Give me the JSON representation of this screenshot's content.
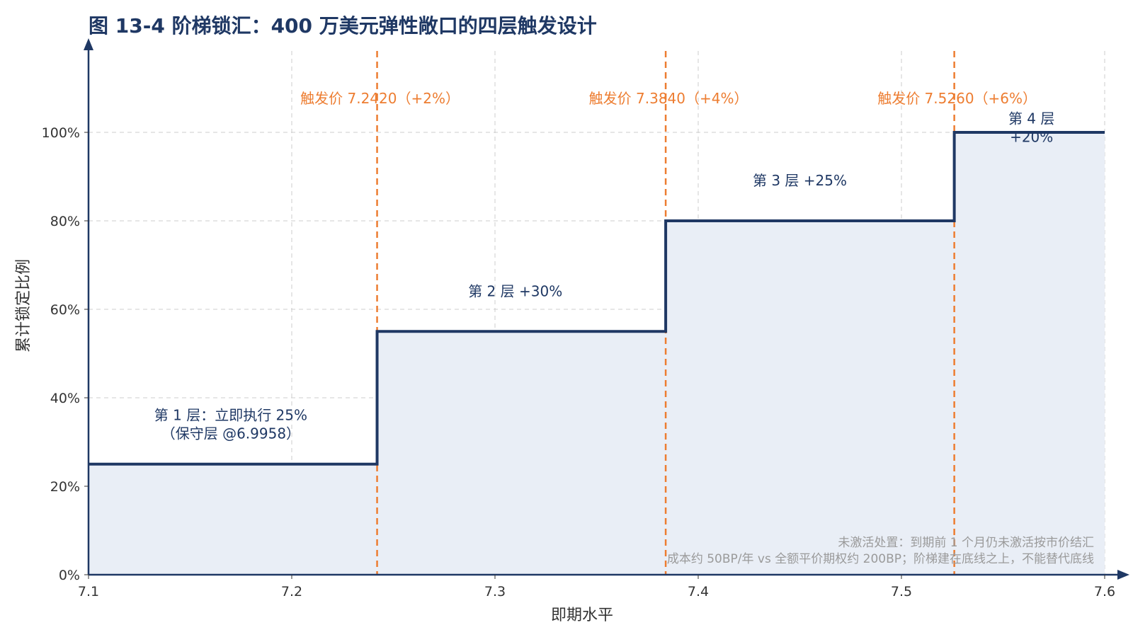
{
  "chart_data": {
    "type": "line",
    "title": "图 13-4 阶梯锁汇：400 万美元弹性敞口的四层触发设计",
    "xlabel": "即期水平",
    "ylabel": "累计锁定比例",
    "xlim": [
      7.1,
      7.6
    ],
    "ylim": [
      0,
      1.15
    ],
    "x_ticks": [
      7.1,
      7.2,
      7.3,
      7.4,
      7.5,
      7.6
    ],
    "x_tick_labels": [
      "7.1",
      "7.2",
      "7.3",
      "7.4",
      "7.5",
      "7.6"
    ],
    "y_ticks": [
      0,
      0.2,
      0.4,
      0.6,
      0.8,
      1.0
    ],
    "y_tick_labels": [
      "0%",
      "20%",
      "40%",
      "60%",
      "80%",
      "100%"
    ],
    "grid": true,
    "step_series": {
      "x": [
        7.1,
        7.242,
        7.242,
        7.384,
        7.384,
        7.526,
        7.526,
        7.6
      ],
      "y": [
        0.25,
        0.25,
        0.55,
        0.55,
        0.8,
        0.8,
        1.0,
        1.0
      ]
    },
    "colors": {
      "step": "#1f3864",
      "fill": "#e9eef6",
      "trigger": "#ed7d31",
      "grid": "#cccccc"
    },
    "triggers": [
      {
        "x": 7.242,
        "label": "触发价 7.2420（+2%）"
      },
      {
        "x": 7.384,
        "label": "触发价 7.3840（+4%）"
      },
      {
        "x": 7.526,
        "label": "触发价 7.5260（+6%）"
      }
    ],
    "layer_labels": [
      {
        "x": 7.17,
        "y": 0.35,
        "lines": [
          "第 1 层：立即执行 25%",
          "（保守层 @6.9958）"
        ]
      },
      {
        "x": 7.31,
        "y": 0.63,
        "lines": [
          "第 2 层 +30%"
        ]
      },
      {
        "x": 7.45,
        "y": 0.88,
        "lines": [
          "第 3 层 +25%"
        ]
      },
      {
        "x": 7.564,
        "y": 1.02,
        "lines": [
          "第 4 层",
          "+20%"
        ]
      }
    ],
    "notes": [
      "未激活处置：到期前 1 个月仍未激活按市价结汇",
      "成本约 50BP/年 vs 全额平价期权约 200BP；阶梯建在底线之上，不能替代底线"
    ]
  }
}
